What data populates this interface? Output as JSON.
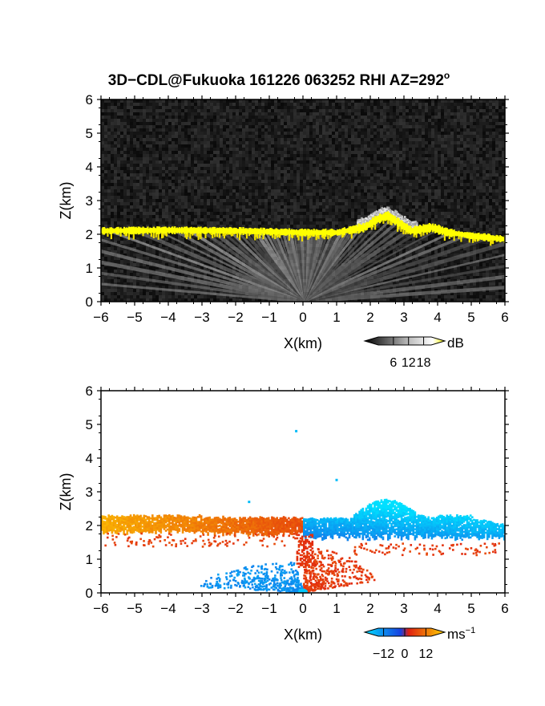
{
  "title": "3D−CDL@Fukuoka 161226 063252 RHI AZ=292",
  "title_superscript": "o",
  "chart_data": [
    {
      "type": "heatmap",
      "variable": "reflectivity",
      "xlabel": "X(km)",
      "ylabel": "Z(km)",
      "xlim": [
        -6,
        6
      ],
      "ylim": [
        0,
        6
      ],
      "xticks": [
        "−6",
        "−5",
        "−4",
        "−3",
        "−2",
        "−1",
        "0",
        "1",
        "2",
        "3",
        "4",
        "5",
        "6"
      ],
      "yticks": [
        "0",
        "1",
        "2",
        "3",
        "4",
        "5",
        "6"
      ],
      "colorbar": {
        "unit": "dB",
        "tick_labels": [
          "6",
          "12",
          "18"
        ],
        "range": [
          0,
          21
        ],
        "colors": [
          "#000000",
          "#ffffff",
          "#ffff00"
        ]
      },
      "layer": {
        "profile_x": [
          -6,
          -4,
          -2,
          0,
          1,
          1.8,
          2.2,
          2.5,
          2.8,
          3.2,
          3.8,
          4.3,
          5,
          6
        ],
        "profile_z": [
          2.1,
          2.12,
          2.1,
          2.05,
          2.05,
          2.2,
          2.45,
          2.55,
          2.35,
          2.1,
          2.2,
          2.05,
          1.95,
          1.85
        ],
        "value_db": 20
      }
    },
    {
      "type": "heatmap",
      "variable": "doppler_velocity",
      "xlabel": "X(km)",
      "ylabel": "Z(km)",
      "xlim": [
        -6,
        6
      ],
      "ylim": [
        0,
        6
      ],
      "xticks": [
        "−6",
        "−5",
        "−4",
        "−3",
        "−2",
        "−1",
        "0",
        "1",
        "2",
        "3",
        "4",
        "5",
        "6"
      ],
      "yticks": [
        "0",
        "1",
        "2",
        "3",
        "4",
        "5",
        "6"
      ],
      "colorbar": {
        "unit": "ms",
        "unit_exponent": "−1",
        "tick_labels": [
          "−12",
          "0",
          "12"
        ],
        "range": [
          -15,
          15
        ],
        "colors": [
          "#00e0ff",
          "#1840e0",
          "#e02010",
          "#ffd400"
        ]
      },
      "regions": [
        {
          "name": "negative_x_layer",
          "x": [
            -6,
            0
          ],
          "z": [
            1.7,
            2.3
          ],
          "velocity_ms": [
            4,
            12
          ]
        },
        {
          "name": "positive_x_layer",
          "x": [
            0,
            6
          ],
          "z": [
            1.5,
            2.8
          ],
          "velocity_ms": [
            -13,
            -5
          ]
        },
        {
          "name": "near_ground_negative",
          "x": [
            -3,
            0.2
          ],
          "z": [
            0,
            0.8
          ],
          "velocity_ms": [
            -9,
            -6
          ]
        },
        {
          "name": "near_ground_positive",
          "x": [
            0,
            2
          ],
          "z": [
            0,
            1.5
          ],
          "velocity_ms": [
            2,
            5
          ]
        }
      ],
      "isolated_points": [
        {
          "x": -0.2,
          "z": 4.8,
          "velocity_ms": -12
        },
        {
          "x": 1.0,
          "z": 3.35,
          "velocity_ms": -12
        },
        {
          "x": -1.6,
          "z": 2.7,
          "velocity_ms": -12
        }
      ]
    }
  ]
}
